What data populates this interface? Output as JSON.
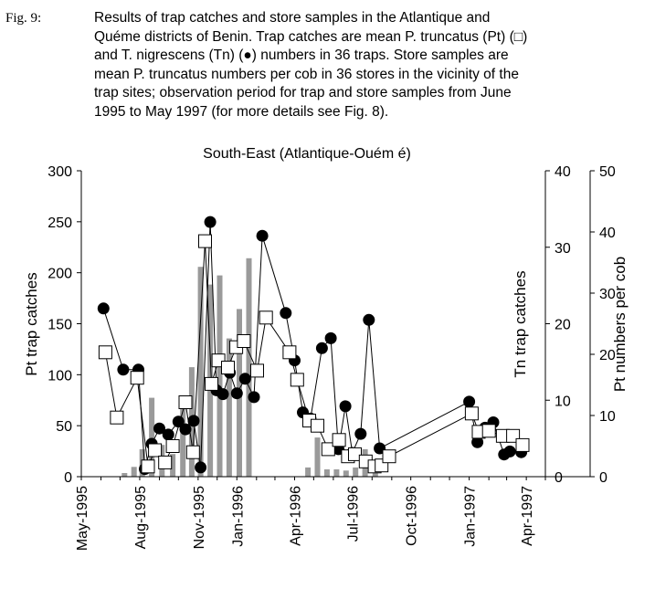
{
  "caption": {
    "label": "Fig. 9:",
    "lines": [
      "Results of trap catches and store samples in the Atlantique and",
      "Quéme districts of Benin. Trap catches are mean P. truncatus (Pt) (□)",
      "and T. nigrescens (Tn) (●) numbers in 36 traps. Store samples are",
      "mean P. truncatus numbers per cob in 36 stores in the vicinity of the",
      "trap sites; observation period for trap and store samples from June",
      "1995 to May 1997 (for more details see Fig. 8)."
    ]
  },
  "chart_data": {
    "type": "bar+line",
    "title": "South-East (Atlantique-Ouém é)",
    "x_tick_labels": [
      "May-1995",
      "Aug-1995",
      "Nov-1995",
      "Jan-1996",
      "Apr-1996",
      "Jul-1996",
      "Oct-1996",
      "Jan-1997",
      "Apr-1997"
    ],
    "x_tick_dates": [
      "1995-05-01",
      "1995-08-01",
      "1995-11-01",
      "1996-01-01",
      "1996-04-01",
      "1996-07-01",
      "1996-10-01",
      "1997-01-01",
      "1997-04-01"
    ],
    "xlim": [
      "1995-05-01",
      "1997-05-01"
    ],
    "axes": {
      "left": {
        "label": "Pt trap catches",
        "ylim": [
          0,
          300
        ],
        "ticks": [
          0,
          50,
          100,
          150,
          200,
          250,
          300
        ]
      },
      "right1": {
        "label": "Tn trap catches",
        "ylim": [
          0,
          40
        ],
        "ticks": [
          0,
          10,
          20,
          30,
          40
        ]
      },
      "right2": {
        "label": "Pt numbers per cob",
        "ylim": [
          0,
          50
        ],
        "ticks": [
          0,
          10,
          20,
          30,
          40,
          50
        ]
      }
    },
    "colors": {
      "bars": "#9a9a9a",
      "lines": "#000000"
    },
    "series": [
      {
        "name": "P. truncatus (Pt) trap catches",
        "marker": "open-square",
        "axis": "left",
        "points": [
          {
            "x": "1995-06-08",
            "y": 122
          },
          {
            "x": "1995-06-26",
            "y": 58
          },
          {
            "x": "1995-07-28",
            "y": 97
          },
          {
            "x": "1995-08-14",
            "y": 10
          },
          {
            "x": "1995-08-25",
            "y": 26
          },
          {
            "x": "1995-09-10",
            "y": 14
          },
          {
            "x": "1995-09-22",
            "y": 30
          },
          {
            "x": "1995-10-12",
            "y": 73
          },
          {
            "x": "1995-10-24",
            "y": 24
          },
          {
            "x": "1995-11-12",
            "y": 231
          },
          {
            "x": "1995-11-22",
            "y": 91
          },
          {
            "x": "1995-12-03",
            "y": 114
          },
          {
            "x": "1995-12-18",
            "y": 107
          },
          {
            "x": "1995-12-31",
            "y": 127
          },
          {
            "x": "1996-01-12",
            "y": 133
          },
          {
            "x": "1996-02-02",
            "y": 104
          },
          {
            "x": "1996-02-16",
            "y": 156
          },
          {
            "x": "1996-03-24",
            "y": 122
          },
          {
            "x": "1996-04-05",
            "y": 95
          },
          {
            "x": "1996-04-24",
            "y": 55
          },
          {
            "x": "1996-05-07",
            "y": 50
          },
          {
            "x": "1996-05-24",
            "y": 27
          },
          {
            "x": "1996-06-10",
            "y": 36
          },
          {
            "x": "1996-06-24",
            "y": 20
          },
          {
            "x": "1996-07-05",
            "y": 22
          },
          {
            "x": "1996-07-22",
            "y": 15
          },
          {
            "x": "1996-08-05",
            "y": 10
          },
          {
            "x": "1996-08-16",
            "y": 11
          },
          {
            "x": "1996-08-28",
            "y": 20
          },
          {
            "x": "1997-01-05",
            "y": 62
          },
          {
            "x": "1997-01-16",
            "y": 44
          },
          {
            "x": "1997-02-01",
            "y": 45
          },
          {
            "x": "1997-02-23",
            "y": 40
          },
          {
            "x": "1997-03-11",
            "y": 40
          },
          {
            "x": "1997-03-26",
            "y": 31
          }
        ]
      },
      {
        "name": "T. nigrescens (Tn) trap catches",
        "marker": "filled-circle",
        "axis": "right1",
        "points": [
          {
            "x": "1995-06-05",
            "y": 22.0
          },
          {
            "x": "1995-07-06",
            "y": 14.0
          },
          {
            "x": "1995-07-30",
            "y": 14.0
          },
          {
            "x": "1995-08-09",
            "y": 1.0
          },
          {
            "x": "1995-08-20",
            "y": 4.3
          },
          {
            "x": "1995-09-01",
            "y": 6.3
          },
          {
            "x": "1995-09-15",
            "y": 5.5
          },
          {
            "x": "1995-10-01",
            "y": 7.2
          },
          {
            "x": "1995-10-12",
            "y": 6.2
          },
          {
            "x": "1995-10-25",
            "y": 7.3
          },
          {
            "x": "1995-11-05",
            "y": 1.2
          },
          {
            "x": "1995-11-20",
            "y": 33.3
          },
          {
            "x": "1995-11-30",
            "y": 11.3
          },
          {
            "x": "1995-12-10",
            "y": 10.8
          },
          {
            "x": "1995-12-21",
            "y": 13.6
          },
          {
            "x": "1996-01-01",
            "y": 10.9
          },
          {
            "x": "1996-01-14",
            "y": 12.8
          },
          {
            "x": "1996-01-28",
            "y": 10.4
          },
          {
            "x": "1996-02-10",
            "y": 31.5
          },
          {
            "x": "1996-03-18",
            "y": 21.4
          },
          {
            "x": "1996-04-01",
            "y": 15.2
          },
          {
            "x": "1996-04-14",
            "y": 8.4
          },
          {
            "x": "1996-04-26",
            "y": 7.6
          },
          {
            "x": "1996-05-14",
            "y": 16.8
          },
          {
            "x": "1996-05-28",
            "y": 18.1
          },
          {
            "x": "1996-06-09",
            "y": 3.6
          },
          {
            "x": "1996-06-20",
            "y": 9.2
          },
          {
            "x": "1996-07-01",
            "y": 3.1
          },
          {
            "x": "1996-07-14",
            "y": 5.6
          },
          {
            "x": "1996-07-27",
            "y": 20.5
          },
          {
            "x": "1996-08-13",
            "y": 3.7
          },
          {
            "x": "1997-01-01",
            "y": 9.8
          },
          {
            "x": "1997-01-14",
            "y": 4.5
          },
          {
            "x": "1997-01-26",
            "y": 6.4
          },
          {
            "x": "1997-02-08",
            "y": 7.1
          },
          {
            "x": "1997-02-25",
            "y": 2.9
          },
          {
            "x": "1997-03-06",
            "y": 3.3
          },
          {
            "x": "1997-03-24",
            "y": 3.2
          }
        ]
      }
    ],
    "bars": {
      "name": "Pt numbers per cob (store samples)",
      "axis": "right2",
      "points": [
        {
          "x": "1995-07-08",
          "y": 0.6
        },
        {
          "x": "1995-07-23",
          "y": 1.6
        },
        {
          "x": "1995-08-05",
          "y": 4.5
        },
        {
          "x": "1995-08-20",
          "y": 12.9
        },
        {
          "x": "1995-09-05",
          "y": 5.2
        },
        {
          "x": "1995-09-22",
          "y": 3.7
        },
        {
          "x": "1995-10-08",
          "y": 11.1
        },
        {
          "x": "1995-10-22",
          "y": 17.9
        },
        {
          "x": "1995-11-05",
          "y": 34.3
        },
        {
          "x": "1995-11-20",
          "y": 31.4
        },
        {
          "x": "1995-12-05",
          "y": 32.9
        },
        {
          "x": "1995-12-20",
          "y": 22.6
        },
        {
          "x": "1996-01-05",
          "y": 27.4
        },
        {
          "x": "1996-01-20",
          "y": 35.7
        },
        {
          "x": "1996-04-22",
          "y": 1.5
        },
        {
          "x": "1996-05-07",
          "y": 6.4
        },
        {
          "x": "1996-05-22",
          "y": 1.2
        },
        {
          "x": "1996-06-06",
          "y": 1.2
        },
        {
          "x": "1996-06-21",
          "y": 1.0
        },
        {
          "x": "1996-07-06",
          "y": 1.5
        },
        {
          "x": "1996-07-21",
          "y": 4.5
        },
        {
          "x": "1996-08-06",
          "y": 1.8
        }
      ]
    }
  }
}
